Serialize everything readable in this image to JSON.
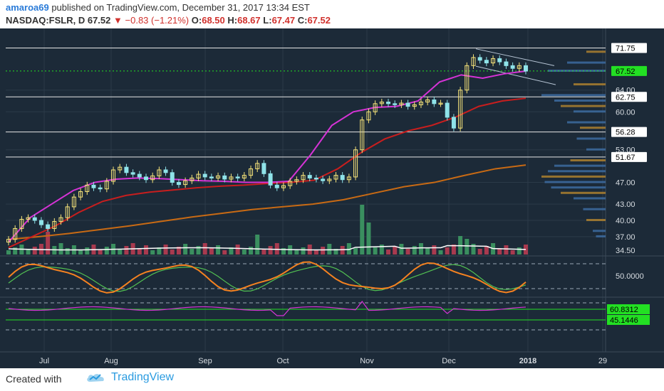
{
  "header": {
    "author": "amaroa69",
    "published_text": " published on TradingView.com, December 31, 2017 13:34 EST",
    "symbol": "NASDAQ:FSLR, D",
    "last": "67.52",
    "change_arrow": "▼",
    "change": "−0.83 (−1.21%)",
    "o_label": "O:",
    "o": "68.50",
    "h_label": "H:",
    "h": "68.67",
    "l_label": "L:",
    "l": "67.47",
    "c_label": "C:",
    "c": "67.52"
  },
  "footer": {
    "created_with": "Created with",
    "brand": "TradingView",
    "logo_icon": "tradingview-cloud-icon"
  },
  "colors": {
    "background": "#1c2a38",
    "grid": "#2b3a49",
    "candle_up": "#f7e47a",
    "candle_down": "#8fe3e9",
    "ema_fast": "#d633d6",
    "ema_mid": "#c81e1e",
    "sma_long": "#c86a14",
    "volume_up": "#3a8f5f",
    "volume_down": "#a83a4f",
    "volume_ma": "#ffffff",
    "stoch_k": "#f58220",
    "stoch_d": "#52c152",
    "rsi": "#d633d6",
    "badge": "#23e023"
  },
  "chart_data": {
    "type": "candlestick",
    "symbol": "NASDAQ:FSLR",
    "interval": "D",
    "x_labels": [
      "Jul",
      "Aug",
      "Sep",
      "Oct",
      "Nov",
      "Dec",
      "2018",
      "29"
    ],
    "y_ticks": [
      "71.75",
      "64.00",
      "60.00",
      "53.00",
      "51.67",
      "47.00",
      "43.00",
      "40.00",
      "37.00",
      "34.50"
    ],
    "price_ylim": [
      34.5,
      73
    ],
    "horizontal_levels": [
      71.75,
      62.75,
      56.28,
      51.67
    ],
    "price_badges": [
      {
        "label": "71.75",
        "style": "level"
      },
      {
        "label": "67.52",
        "style": "last"
      },
      {
        "label": "62.75",
        "style": "level"
      },
      {
        "label": "56.28",
        "style": "level"
      },
      {
        "label": "51.67",
        "style": "level"
      }
    ],
    "closes_approx": [
      36.5,
      38.5,
      40.2,
      40.5,
      40.0,
      39.2,
      38.5,
      39.8,
      40.5,
      42.5,
      44.3,
      45.3,
      46.5,
      46.0,
      45.8,
      47.2,
      49.3,
      49.8,
      48.8,
      48.5,
      48.0,
      47.5,
      48.2,
      49.3,
      48.8,
      47.0,
      46.6,
      47.3,
      47.8,
      48.5,
      48.0,
      47.8,
      48.2,
      47.6,
      48.0,
      47.8,
      48.3,
      49.5,
      50.5,
      48.6,
      46.5,
      46.0,
      46.4,
      47.2,
      47.5,
      48.3,
      47.8,
      47.6,
      47.3,
      47.6,
      48.3,
      47.5,
      48.0,
      53.0,
      58.5,
      60.0,
      61.5,
      61.8,
      61.5,
      61.3,
      61.6,
      61.0,
      61.3,
      61.8,
      62.2,
      61.5,
      61.6,
      59.0,
      57.0,
      64.0,
      68.5,
      70.0,
      69.5,
      69.0,
      69.8,
      69.2,
      68.5,
      68.0,
      68.5,
      67.5
    ],
    "ema_fast_approx": [
      36.0,
      40.5,
      43.0,
      45.5,
      47.0,
      47.6,
      47.8,
      47.7,
      47.5,
      47.3,
      47.2,
      47.0,
      47.0,
      47.2,
      52.0,
      57.5,
      60.0,
      60.8,
      61.0,
      62.0,
      65.5,
      66.8,
      66.2,
      67.0,
      67.5
    ],
    "ema_mid_approx": [
      35.0,
      37.0,
      39.0,
      41.5,
      43.5,
      44.6,
      45.2,
      45.6,
      46.0,
      46.3,
      46.5,
      46.8,
      47.0,
      47.4,
      49.5,
      52.5,
      55.0,
      56.5,
      57.5,
      59.0,
      61.0,
      62.0,
      62.5
    ],
    "sma_long_approx": [
      36.5,
      37.0,
      37.6,
      38.3,
      39.0,
      39.8,
      40.6,
      41.3,
      42.0,
      42.5,
      43.0,
      43.8,
      45.0,
      46.2,
      47.0,
      48.3,
      49.5,
      50.2
    ],
    "volume_indicator": {
      "ma_label": "volume moving average"
    },
    "stochastic": {
      "level_label": "50.0000",
      "bands": [
        80,
        20
      ]
    },
    "rsi": {
      "labels": [
        "60.8312",
        "45.1446"
      ]
    }
  }
}
